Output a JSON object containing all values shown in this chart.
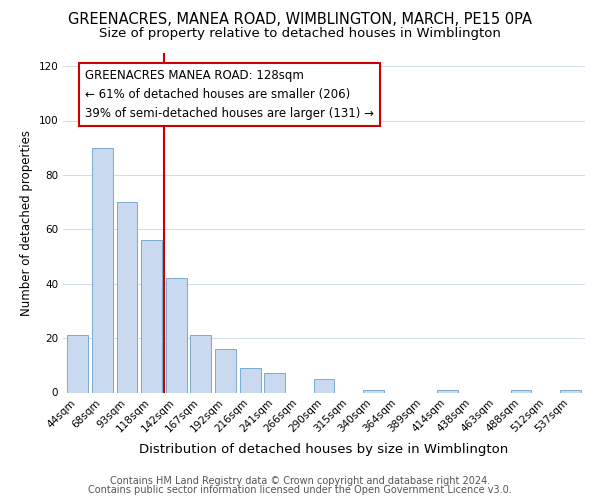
{
  "title": "GREENACRES, MANEA ROAD, WIMBLINGTON, MARCH, PE15 0PA",
  "subtitle": "Size of property relative to detached houses in Wimblington",
  "xlabel": "Distribution of detached houses by size in Wimblington",
  "ylabel": "Number of detached properties",
  "bar_labels": [
    "44sqm",
    "68sqm",
    "93sqm",
    "118sqm",
    "142sqm",
    "167sqm",
    "192sqm",
    "216sqm",
    "241sqm",
    "266sqm",
    "290sqm",
    "315sqm",
    "340sqm",
    "364sqm",
    "389sqm",
    "414sqm",
    "438sqm",
    "463sqm",
    "488sqm",
    "512sqm",
    "537sqm"
  ],
  "bar_values": [
    21,
    90,
    70,
    56,
    42,
    21,
    16,
    9,
    7,
    0,
    5,
    0,
    1,
    0,
    0,
    1,
    0,
    0,
    1,
    0,
    1
  ],
  "bar_color": "#c9d9f0",
  "bar_edge_color": "#7aaad0",
  "vline_x": 3.5,
  "vline_color": "#cc0000",
  "annotation_title": "GREENACRES MANEA ROAD: 128sqm",
  "annotation_line1": "← 61% of detached houses are smaller (206)",
  "annotation_line2": "39% of semi-detached houses are larger (131) →",
  "ylim": [
    0,
    125
  ],
  "yticks": [
    0,
    20,
    40,
    60,
    80,
    100,
    120
  ],
  "footer1": "Contains HM Land Registry data © Crown copyright and database right 2024.",
  "footer2": "Contains public sector information licensed under the Open Government Licence v3.0.",
  "title_fontsize": 10.5,
  "subtitle_fontsize": 9.5,
  "xlabel_fontsize": 9.5,
  "ylabel_fontsize": 8.5,
  "tick_fontsize": 7.5,
  "annotation_fontsize": 8.5,
  "footer_fontsize": 7.0
}
